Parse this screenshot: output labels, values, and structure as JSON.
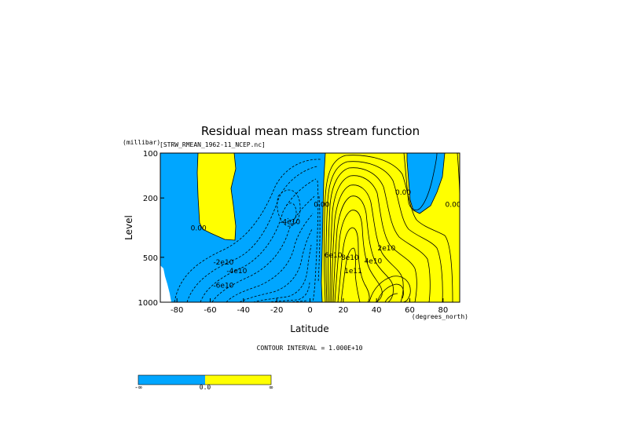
{
  "chart_data": {
    "type": "contour",
    "title": "Residual mean mass stream function",
    "subtitle": "[STRW_RMEAN_1962-11_NCEP.nc]",
    "xlabel": "Latitude",
    "xunit": "(degrees_north)",
    "ylabel": "Level",
    "yunit": "(millibar)",
    "xlim": [
      -90,
      90
    ],
    "ylim": [
      1000,
      100
    ],
    "y_scale": "log",
    "x_ticks": [
      -80,
      -60,
      -40,
      -20,
      0,
      20,
      40,
      60,
      80
    ],
    "x_tick_labels": [
      "-80",
      "-60",
      "-40",
      "-20",
      "0",
      "20",
      "40",
      "60",
      "80"
    ],
    "y_ticks": [
      1000,
      500,
      200,
      100
    ],
    "y_tick_labels": [
      "1000",
      "500",
      "200",
      "100"
    ],
    "contour_interval_text": "CONTOUR INTERVAL = 1.000E+10",
    "fill_colors": {
      "negative": "#00a6ff",
      "positive": "#ffff00"
    },
    "contour_labels": [
      {
        "text": "0.00",
        "lat": -67,
        "p": 330
      },
      {
        "text": "-4e10",
        "lat": -12,
        "p": 300
      },
      {
        "text": "-2e10",
        "lat": -52,
        "p": 560
      },
      {
        "text": "-4e10",
        "lat": -44,
        "p": 640
      },
      {
        "text": "-6e10",
        "lat": -52,
        "p": 800
      },
      {
        "text": "0.00",
        "lat": 7,
        "p": 230
      },
      {
        "text": "6e10",
        "lat": 14,
        "p": 500
      },
      {
        "text": "2e10",
        "lat": 46,
        "p": 450
      },
      {
        "text": "4e10",
        "lat": 38,
        "p": 550
      },
      {
        "text": "0.00",
        "lat": 56,
        "p": 190
      },
      {
        "text": "0.00",
        "lat": 86,
        "p": 230
      },
      {
        "text": "8e10",
        "lat": 24,
        "p": 520
      },
      {
        "text": "1e11",
        "lat": 26,
        "p": 640
      }
    ],
    "colorbar": {
      "labels": [
        "-∞",
        "0.0",
        "∞"
      ],
      "colors": [
        "#00a6ff",
        "#ffff00"
      ]
    }
  }
}
